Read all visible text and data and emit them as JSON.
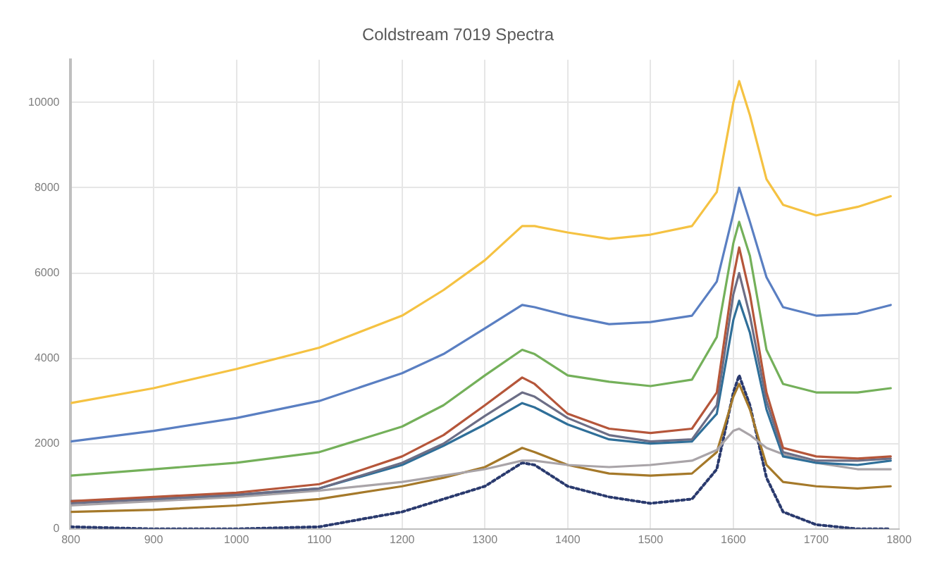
{
  "chart_data": {
    "type": "line",
    "title": "Coldstream 7019 Spectra",
    "x": [
      800,
      900,
      1000,
      1100,
      1200,
      1250,
      1300,
      1345,
      1360,
      1400,
      1450,
      1500,
      1550,
      1580,
      1600,
      1607,
      1620,
      1640,
      1660,
      1700,
      1750,
      1790
    ],
    "series": [
      {
        "color": "#f5c242",
        "values": [
          2950,
          3300,
          3750,
          4250,
          5000,
          5600,
          6300,
          7100,
          7100,
          6950,
          6800,
          6900,
          7100,
          7900,
          10000,
          10500,
          9700,
          8200,
          7600,
          7350,
          7550,
          7800
        ]
      },
      {
        "color": "#5a7fc2",
        "values": [
          2050,
          2300,
          2600,
          3000,
          3650,
          4100,
          4700,
          5250,
          5200,
          5000,
          4800,
          4850,
          5000,
          5800,
          7400,
          8000,
          7200,
          5900,
          5200,
          5000,
          5050,
          5250
        ]
      },
      {
        "color": "#74b05a",
        "values": [
          1250,
          1400,
          1550,
          1800,
          2400,
          2900,
          3600,
          4200,
          4100,
          3600,
          3450,
          3350,
          3500,
          4500,
          6700,
          7200,
          6400,
          4200,
          3400,
          3200,
          3200,
          3300
        ]
      },
      {
        "color": "#b5563a",
        "values": [
          650,
          750,
          850,
          1050,
          1700,
          2200,
          2900,
          3550,
          3400,
          2700,
          2350,
          2250,
          2350,
          3200,
          5900,
          6600,
          5500,
          3200,
          1900,
          1700,
          1650,
          1700
        ]
      },
      {
        "color": "#6c6e86",
        "values": [
          600,
          700,
          800,
          950,
          1550,
          2000,
          2650,
          3200,
          3100,
          2600,
          2200,
          2050,
          2100,
          2900,
          5500,
          6000,
          5000,
          3000,
          1800,
          1600,
          1600,
          1650
        ]
      },
      {
        "color": "#2f6f99",
        "values": [
          650,
          700,
          800,
          950,
          1500,
          1950,
          2450,
          2950,
          2850,
          2450,
          2100,
          2000,
          2050,
          2700,
          4900,
          5350,
          4600,
          2800,
          1700,
          1550,
          1500,
          1600
        ]
      },
      {
        "color": "#a9a4a8",
        "values": [
          550,
          650,
          750,
          900,
          1100,
          1250,
          1400,
          1600,
          1600,
          1500,
          1450,
          1500,
          1600,
          1850,
          2300,
          2350,
          2200,
          1900,
          1750,
          1550,
          1400,
          1400
        ]
      },
      {
        "color": "#a5792a",
        "values": [
          400,
          450,
          550,
          700,
          1000,
          1200,
          1450,
          1900,
          1800,
          1500,
          1300,
          1250,
          1300,
          1800,
          3100,
          3400,
          2800,
          1500,
          1100,
          1000,
          950,
          1000
        ]
      },
      {
        "color": "#2a3a6e",
        "line_style": "dotted",
        "values": [
          50,
          0,
          0,
          50,
          400,
          700,
          1000,
          1550,
          1500,
          1000,
          750,
          600,
          700,
          1400,
          3200,
          3600,
          2900,
          1200,
          400,
          100,
          0,
          0
        ]
      }
    ],
    "xlim": [
      800,
      1800
    ],
    "xticks": [
      800,
      900,
      1000,
      1100,
      1200,
      1300,
      1400,
      1500,
      1600,
      1700,
      1800
    ],
    "ylim": [
      0,
      11000
    ],
    "yticks": [
      0,
      2000,
      4000,
      6000,
      8000,
      10000
    ],
    "grid": true,
    "legend": false,
    "marker": "none",
    "line_style": "solid"
  }
}
